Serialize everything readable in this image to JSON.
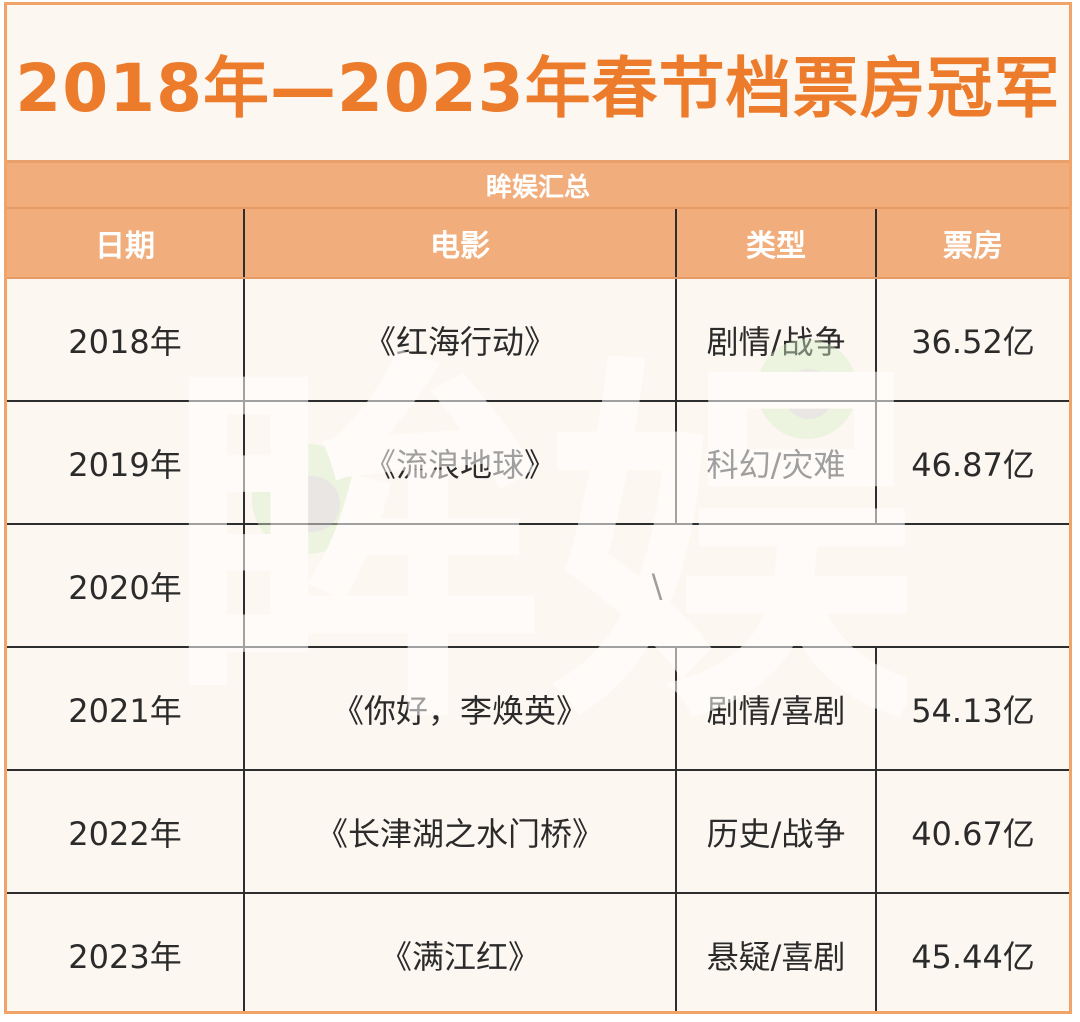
{
  "title": "2018年—2023年春节档票房冠军",
  "source": "眸娱汇总",
  "headers": {
    "date": "日期",
    "movie": "电影",
    "genre": "类型",
    "box": "票房"
  },
  "rows": [
    {
      "date": "2018年",
      "movie": "《红海行动》",
      "genre": "剧情/战争",
      "box": "36.52亿"
    },
    {
      "date": "2019年",
      "movie": "《流浪地球》",
      "genre": "科幻/灾难",
      "box": "46.87亿"
    },
    {
      "date": "2020年",
      "placeholder": "\\"
    },
    {
      "date": "2021年",
      "movie": "《你好，李焕英》",
      "genre": "剧情/喜剧",
      "box": "54.13亿"
    },
    {
      "date": "2022年",
      "movie": "《长津湖之水门桥》",
      "genre": "历史/战争",
      "box": "40.67亿"
    },
    {
      "date": "2023年",
      "movie": "《满江红》",
      "genre": "悬疑/喜剧",
      "box": "45.44亿"
    }
  ],
  "watermark": {
    "logo_text": "眸娱",
    "colors": {
      "fill": "#ffffff",
      "eye": "#d6ecc8",
      "pupil": "#d9d9d9"
    }
  }
}
